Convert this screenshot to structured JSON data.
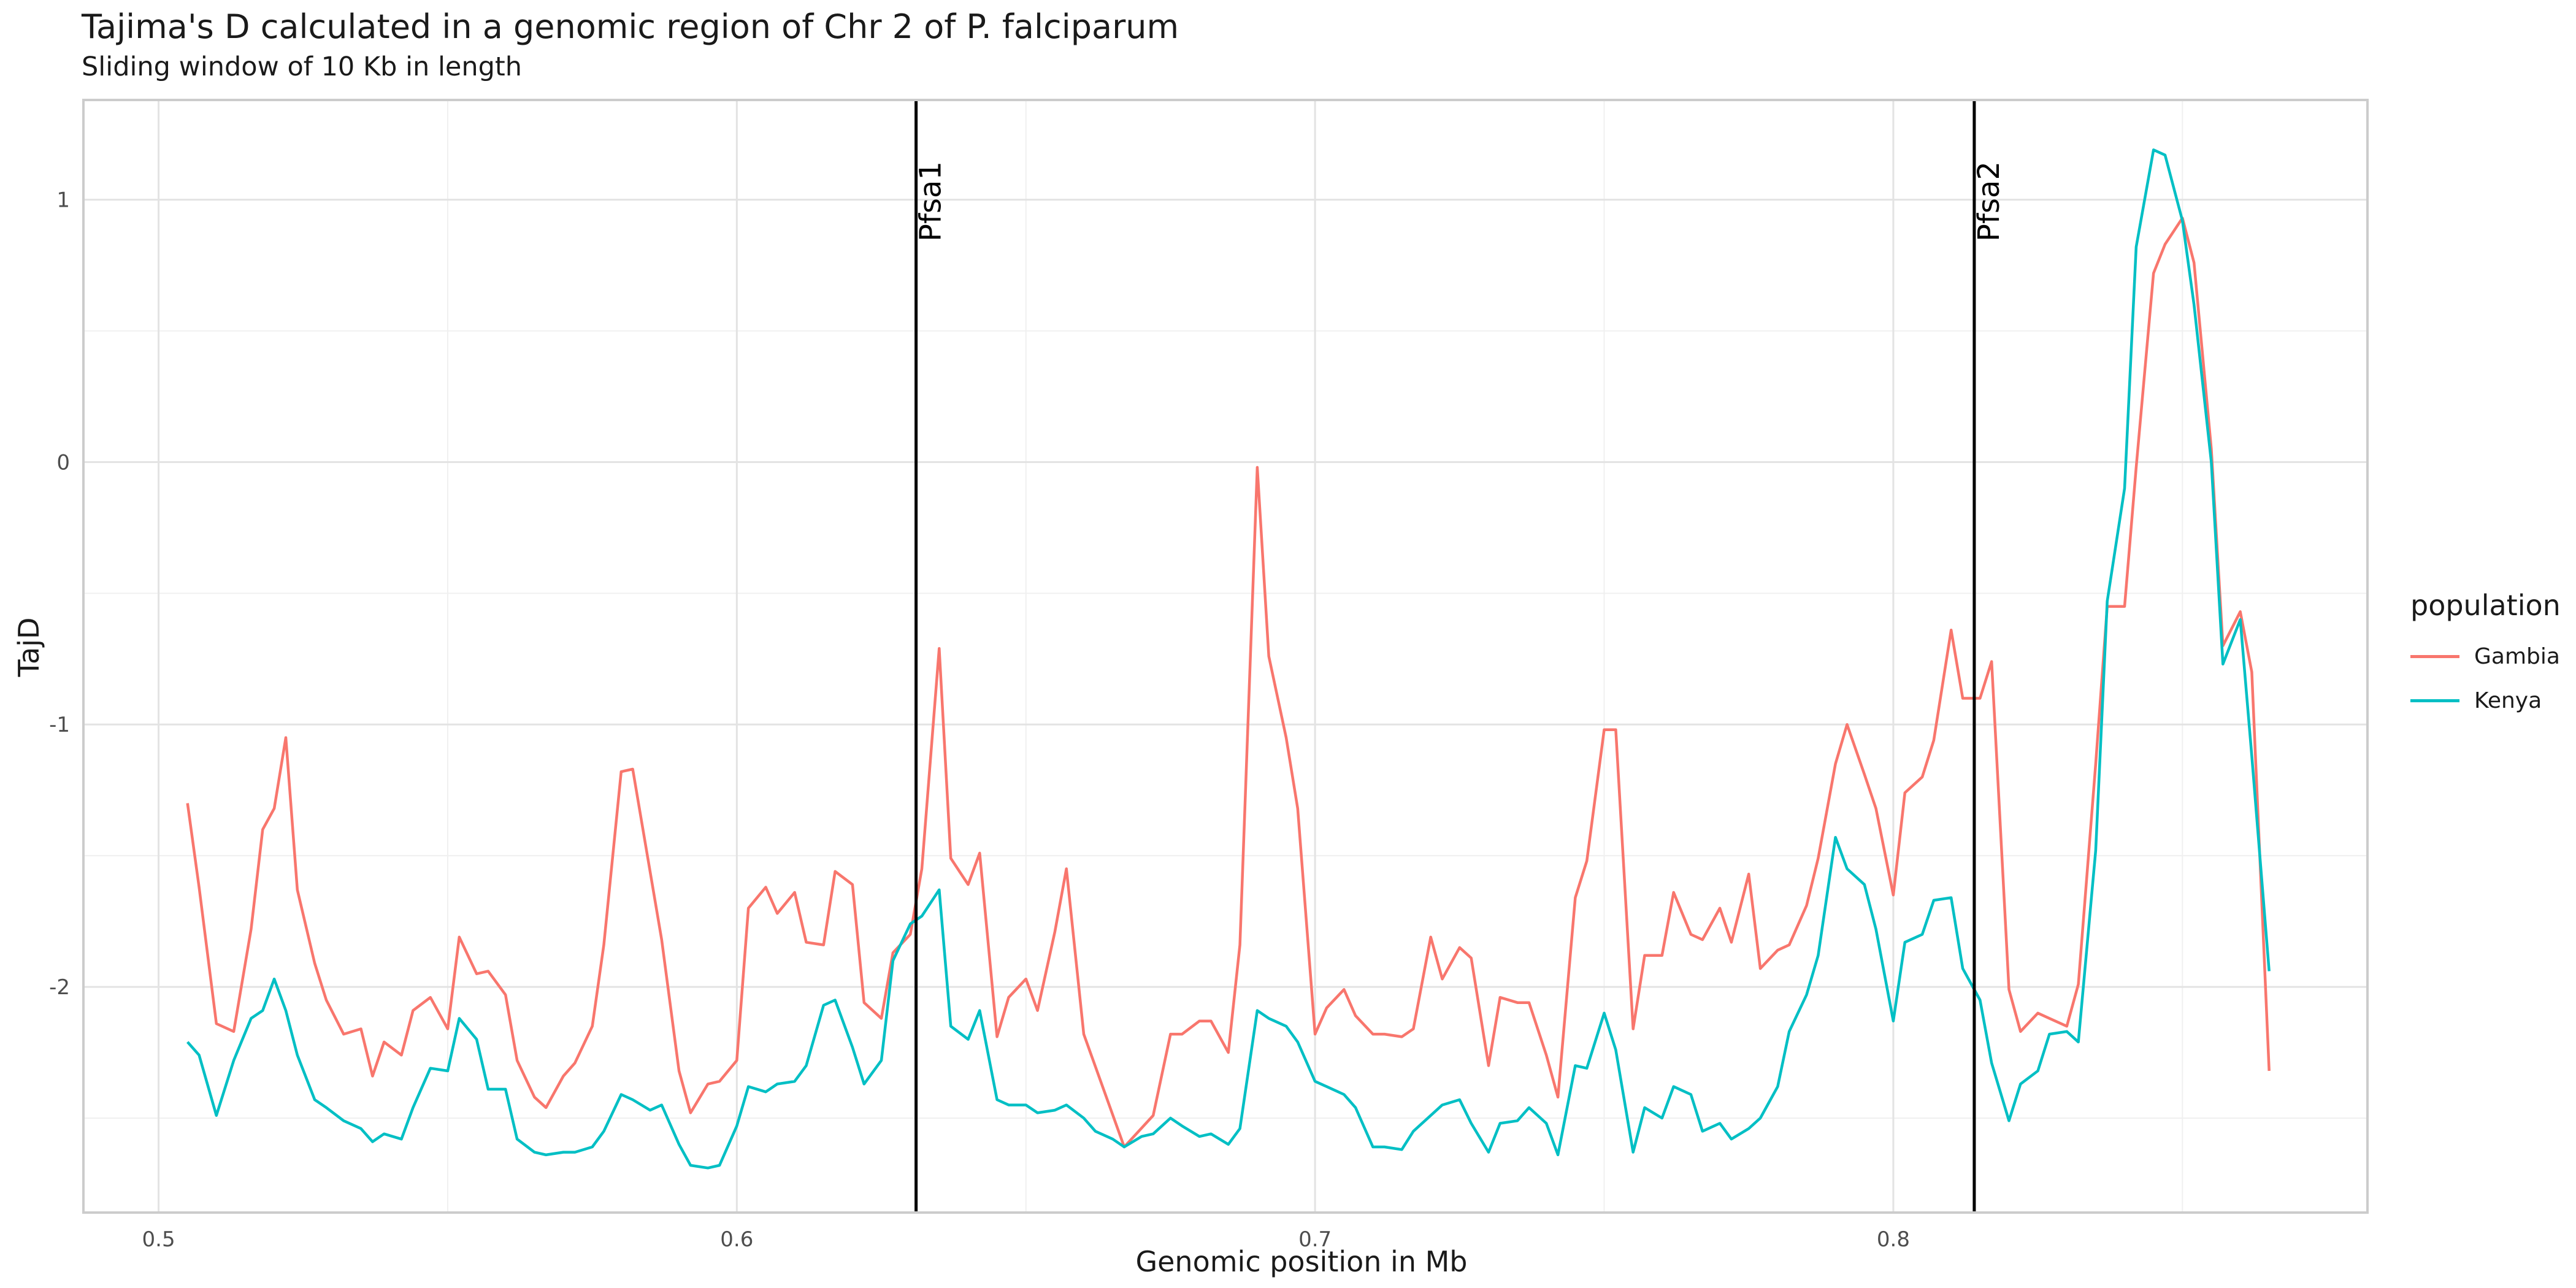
{
  "chart_data": {
    "type": "line",
    "title": "Tajima's D calculated in a genomic region of Chr 2 of P. falciparum",
    "subtitle": "Sliding window of 10 Kb in length",
    "xlabel": "Genomic position in Mb",
    "ylabel": "TajD",
    "xlim": [
      0.487,
      0.882
    ],
    "ylim": [
      -2.86,
      1.38
    ],
    "x_ticks": [
      0.5,
      0.6,
      0.7,
      0.8
    ],
    "x_tick_labels": [
      "0.5",
      "0.6",
      "0.7",
      "0.8"
    ],
    "y_ticks": [
      -2,
      -1,
      0,
      1
    ],
    "y_tick_labels": [
      "-2",
      "-1",
      "0",
      "1"
    ],
    "grid": true,
    "legend": {
      "title": "population",
      "placement": "right"
    },
    "vlines": [
      {
        "x": 0.631,
        "label": "Pfsa1"
      },
      {
        "x": 0.814,
        "label": "Pfsa2"
      }
    ],
    "series": [
      {
        "name": "Gambia",
        "color": "#F8766D",
        "points": [
          [
            0.505,
            -1.3
          ],
          [
            0.507,
            -1.62
          ],
          [
            0.51,
            -2.14
          ],
          [
            0.513,
            -2.17
          ],
          [
            0.516,
            -1.78
          ],
          [
            0.518,
            -1.4
          ],
          [
            0.52,
            -1.32
          ],
          [
            0.522,
            -1.05
          ],
          [
            0.524,
            -1.63
          ],
          [
            0.527,
            -1.91
          ],
          [
            0.529,
            -2.05
          ],
          [
            0.532,
            -2.18
          ],
          [
            0.535,
            -2.16
          ],
          [
            0.537,
            -2.34
          ],
          [
            0.539,
            -2.21
          ],
          [
            0.542,
            -2.26
          ],
          [
            0.544,
            -2.09
          ],
          [
            0.547,
            -2.04
          ],
          [
            0.55,
            -2.16
          ],
          [
            0.552,
            -1.81
          ],
          [
            0.555,
            -1.95
          ],
          [
            0.557,
            -1.94
          ],
          [
            0.56,
            -2.03
          ],
          [
            0.562,
            -2.28
          ],
          [
            0.565,
            -2.42
          ],
          [
            0.567,
            -2.46
          ],
          [
            0.57,
            -2.34
          ],
          [
            0.572,
            -2.29
          ],
          [
            0.575,
            -2.15
          ],
          [
            0.577,
            -1.84
          ],
          [
            0.58,
            -1.18
          ],
          [
            0.582,
            -1.17
          ],
          [
            0.585,
            -1.56
          ],
          [
            0.587,
            -1.82
          ],
          [
            0.59,
            -2.32
          ],
          [
            0.592,
            -2.48
          ],
          [
            0.595,
            -2.37
          ],
          [
            0.597,
            -2.36
          ],
          [
            0.6,
            -2.28
          ],
          [
            0.602,
            -1.7
          ],
          [
            0.605,
            -1.62
          ],
          [
            0.607,
            -1.72
          ],
          [
            0.61,
            -1.64
          ],
          [
            0.612,
            -1.83
          ],
          [
            0.615,
            -1.84
          ],
          [
            0.617,
            -1.56
          ],
          [
            0.62,
            -1.61
          ],
          [
            0.622,
            -2.06
          ],
          [
            0.625,
            -2.12
          ],
          [
            0.627,
            -1.87
          ],
          [
            0.63,
            -1.8
          ],
          [
            0.632,
            -1.55
          ],
          [
            0.635,
            -0.71
          ],
          [
            0.637,
            -1.51
          ],
          [
            0.64,
            -1.61
          ],
          [
            0.642,
            -1.49
          ],
          [
            0.645,
            -2.19
          ],
          [
            0.647,
            -2.04
          ],
          [
            0.65,
            -1.97
          ],
          [
            0.652,
            -2.09
          ],
          [
            0.655,
            -1.79
          ],
          [
            0.657,
            -1.55
          ],
          [
            0.66,
            -2.18
          ],
          [
            0.667,
            -2.61
          ],
          [
            0.672,
            -2.49
          ],
          [
            0.675,
            -2.18
          ],
          [
            0.677,
            -2.18
          ],
          [
            0.68,
            -2.13
          ],
          [
            0.682,
            -2.13
          ],
          [
            0.685,
            -2.25
          ],
          [
            0.687,
            -1.84
          ],
          [
            0.69,
            -0.02
          ],
          [
            0.692,
            -0.74
          ],
          [
            0.695,
            -1.05
          ],
          [
            0.697,
            -1.32
          ],
          [
            0.7,
            -2.18
          ],
          [
            0.702,
            -2.08
          ],
          [
            0.705,
            -2.01
          ],
          [
            0.707,
            -2.11
          ],
          [
            0.71,
            -2.18
          ],
          [
            0.712,
            -2.18
          ],
          [
            0.715,
            -2.19
          ],
          [
            0.717,
            -2.16
          ],
          [
            0.72,
            -1.81
          ],
          [
            0.722,
            -1.97
          ],
          [
            0.725,
            -1.85
          ],
          [
            0.727,
            -1.89
          ],
          [
            0.73,
            -2.3
          ],
          [
            0.732,
            -2.04
          ],
          [
            0.735,
            -2.06
          ],
          [
            0.737,
            -2.06
          ],
          [
            0.74,
            -2.26
          ],
          [
            0.742,
            -2.42
          ],
          [
            0.745,
            -1.66
          ],
          [
            0.747,
            -1.52
          ],
          [
            0.75,
            -1.02
          ],
          [
            0.752,
            -1.02
          ],
          [
            0.755,
            -2.16
          ],
          [
            0.757,
            -1.88
          ],
          [
            0.76,
            -1.88
          ],
          [
            0.762,
            -1.64
          ],
          [
            0.765,
            -1.8
          ],
          [
            0.767,
            -1.82
          ],
          [
            0.77,
            -1.7
          ],
          [
            0.772,
            -1.83
          ],
          [
            0.775,
            -1.57
          ],
          [
            0.777,
            -1.93
          ],
          [
            0.78,
            -1.86
          ],
          [
            0.782,
            -1.84
          ],
          [
            0.785,
            -1.69
          ],
          [
            0.787,
            -1.51
          ],
          [
            0.79,
            -1.15
          ],
          [
            0.792,
            -1.0
          ],
          [
            0.795,
            -1.19
          ],
          [
            0.797,
            -1.32
          ],
          [
            0.8,
            -1.65
          ],
          [
            0.802,
            -1.26
          ],
          [
            0.805,
            -1.2
          ],
          [
            0.807,
            -1.06
          ],
          [
            0.81,
            -0.64
          ],
          [
            0.812,
            -0.9
          ],
          [
            0.815,
            -0.9
          ],
          [
            0.817,
            -0.76
          ],
          [
            0.82,
            -2.01
          ],
          [
            0.822,
            -2.17
          ],
          [
            0.825,
            -2.1
          ],
          [
            0.827,
            -2.12
          ],
          [
            0.83,
            -2.15
          ],
          [
            0.832,
            -1.99
          ],
          [
            0.835,
            -1.15
          ],
          [
            0.837,
            -0.55
          ],
          [
            0.84,
            -0.55
          ],
          [
            0.842,
            -0.02
          ],
          [
            0.845,
            0.72
          ],
          [
            0.847,
            0.83
          ],
          [
            0.85,
            0.93
          ],
          [
            0.852,
            0.76
          ],
          [
            0.855,
            0.05
          ],
          [
            0.857,
            -0.7
          ],
          [
            0.86,
            -0.57
          ],
          [
            0.862,
            -0.8
          ],
          [
            0.865,
            -2.32
          ]
        ]
      },
      {
        "name": "Kenya",
        "color": "#00BFC4",
        "points": [
          [
            0.505,
            -2.21
          ],
          [
            0.507,
            -2.26
          ],
          [
            0.51,
            -2.49
          ],
          [
            0.513,
            -2.28
          ],
          [
            0.516,
            -2.12
          ],
          [
            0.518,
            -2.09
          ],
          [
            0.52,
            -1.97
          ],
          [
            0.522,
            -2.09
          ],
          [
            0.524,
            -2.26
          ],
          [
            0.527,
            -2.43
          ],
          [
            0.529,
            -2.46
          ],
          [
            0.532,
            -2.51
          ],
          [
            0.535,
            -2.54
          ],
          [
            0.537,
            -2.59
          ],
          [
            0.539,
            -2.56
          ],
          [
            0.542,
            -2.58
          ],
          [
            0.544,
            -2.46
          ],
          [
            0.547,
            -2.31
          ],
          [
            0.55,
            -2.32
          ],
          [
            0.552,
            -2.12
          ],
          [
            0.555,
            -2.2
          ],
          [
            0.557,
            -2.39
          ],
          [
            0.56,
            -2.39
          ],
          [
            0.562,
            -2.58
          ],
          [
            0.565,
            -2.63
          ],
          [
            0.567,
            -2.64
          ],
          [
            0.57,
            -2.63
          ],
          [
            0.572,
            -2.63
          ],
          [
            0.575,
            -2.61
          ],
          [
            0.577,
            -2.55
          ],
          [
            0.58,
            -2.41
          ],
          [
            0.582,
            -2.43
          ],
          [
            0.585,
            -2.47
          ],
          [
            0.587,
            -2.45
          ],
          [
            0.59,
            -2.6
          ],
          [
            0.592,
            -2.68
          ],
          [
            0.595,
            -2.69
          ],
          [
            0.597,
            -2.68
          ],
          [
            0.6,
            -2.53
          ],
          [
            0.602,
            -2.38
          ],
          [
            0.605,
            -2.4
          ],
          [
            0.607,
            -2.37
          ],
          [
            0.61,
            -2.36
          ],
          [
            0.612,
            -2.3
          ],
          [
            0.615,
            -2.07
          ],
          [
            0.617,
            -2.05
          ],
          [
            0.62,
            -2.23
          ],
          [
            0.622,
            -2.37
          ],
          [
            0.625,
            -2.28
          ],
          [
            0.627,
            -1.9
          ],
          [
            0.63,
            -1.76
          ],
          [
            0.632,
            -1.73
          ],
          [
            0.635,
            -1.63
          ],
          [
            0.637,
            -2.15
          ],
          [
            0.64,
            -2.2
          ],
          [
            0.642,
            -2.09
          ],
          [
            0.645,
            -2.43
          ],
          [
            0.647,
            -2.45
          ],
          [
            0.65,
            -2.45
          ],
          [
            0.652,
            -2.48
          ],
          [
            0.655,
            -2.47
          ],
          [
            0.657,
            -2.45
          ],
          [
            0.66,
            -2.5
          ],
          [
            0.662,
            -2.55
          ],
          [
            0.665,
            -2.58
          ],
          [
            0.667,
            -2.61
          ],
          [
            0.67,
            -2.57
          ],
          [
            0.672,
            -2.56
          ],
          [
            0.675,
            -2.5
          ],
          [
            0.677,
            -2.53
          ],
          [
            0.68,
            -2.57
          ],
          [
            0.682,
            -2.56
          ],
          [
            0.685,
            -2.6
          ],
          [
            0.687,
            -2.54
          ],
          [
            0.69,
            -2.09
          ],
          [
            0.692,
            -2.12
          ],
          [
            0.695,
            -2.15
          ],
          [
            0.697,
            -2.21
          ],
          [
            0.7,
            -2.36
          ],
          [
            0.702,
            -2.38
          ],
          [
            0.705,
            -2.41
          ],
          [
            0.707,
            -2.46
          ],
          [
            0.71,
            -2.61
          ],
          [
            0.712,
            -2.61
          ],
          [
            0.715,
            -2.62
          ],
          [
            0.717,
            -2.55
          ],
          [
            0.72,
            -2.49
          ],
          [
            0.722,
            -2.45
          ],
          [
            0.725,
            -2.43
          ],
          [
            0.727,
            -2.52
          ],
          [
            0.73,
            -2.63
          ],
          [
            0.732,
            -2.52
          ],
          [
            0.735,
            -2.51
          ],
          [
            0.737,
            -2.46
          ],
          [
            0.74,
            -2.52
          ],
          [
            0.742,
            -2.64
          ],
          [
            0.745,
            -2.3
          ],
          [
            0.747,
            -2.31
          ],
          [
            0.75,
            -2.1
          ],
          [
            0.752,
            -2.24
          ],
          [
            0.755,
            -2.63
          ],
          [
            0.757,
            -2.46
          ],
          [
            0.76,
            -2.5
          ],
          [
            0.762,
            -2.38
          ],
          [
            0.765,
            -2.41
          ],
          [
            0.767,
            -2.55
          ],
          [
            0.77,
            -2.52
          ],
          [
            0.772,
            -2.58
          ],
          [
            0.775,
            -2.54
          ],
          [
            0.777,
            -2.5
          ],
          [
            0.78,
            -2.38
          ],
          [
            0.782,
            -2.17
          ],
          [
            0.785,
            -2.03
          ],
          [
            0.787,
            -1.88
          ],
          [
            0.79,
            -1.43
          ],
          [
            0.792,
            -1.55
          ],
          [
            0.795,
            -1.61
          ],
          [
            0.797,
            -1.78
          ],
          [
            0.8,
            -2.13
          ],
          [
            0.802,
            -1.83
          ],
          [
            0.805,
            -1.8
          ],
          [
            0.807,
            -1.67
          ],
          [
            0.81,
            -1.66
          ],
          [
            0.812,
            -1.93
          ],
          [
            0.815,
            -2.05
          ],
          [
            0.817,
            -2.29
          ],
          [
            0.82,
            -2.51
          ],
          [
            0.822,
            -2.37
          ],
          [
            0.825,
            -2.32
          ],
          [
            0.827,
            -2.18
          ],
          [
            0.83,
            -2.17
          ],
          [
            0.832,
            -2.21
          ],
          [
            0.835,
            -1.48
          ],
          [
            0.837,
            -0.53
          ],
          [
            0.84,
            -0.1
          ],
          [
            0.842,
            0.82
          ],
          [
            0.845,
            1.19
          ],
          [
            0.847,
            1.17
          ],
          [
            0.85,
            0.92
          ],
          [
            0.852,
            0.6
          ],
          [
            0.855,
            0.0
          ],
          [
            0.857,
            -0.77
          ],
          [
            0.86,
            -0.6
          ],
          [
            0.862,
            -1.12
          ],
          [
            0.865,
            -1.94
          ]
        ]
      }
    ]
  }
}
